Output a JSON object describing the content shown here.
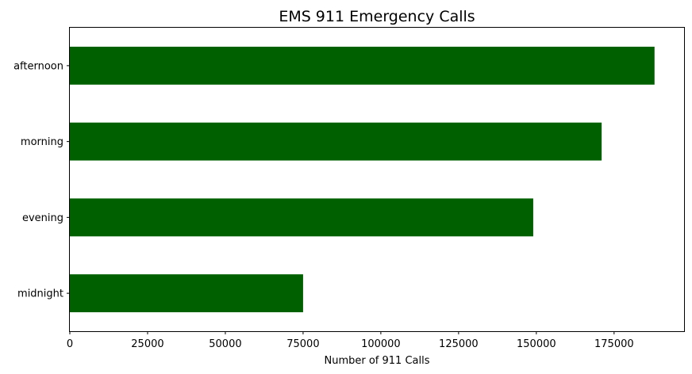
{
  "chart_data": {
    "type": "bar",
    "orientation": "horizontal",
    "title": "EMS 911 Emergency Calls",
    "xlabel": "Number of 911 Calls",
    "ylabel": "",
    "categories": [
      "afternoon",
      "morning",
      "evening",
      "midnight"
    ],
    "values": [
      188000,
      171000,
      149000,
      75000
    ],
    "xlim": [
      0,
      197500
    ],
    "xticks": [
      0,
      25000,
      50000,
      75000,
      100000,
      125000,
      150000,
      175000
    ],
    "xtick_labels": [
      "0",
      "25000",
      "50000",
      "75000",
      "100000",
      "125000",
      "150000",
      "175000"
    ],
    "bar_color": "#006000",
    "grid": false,
    "legend": "none"
  }
}
